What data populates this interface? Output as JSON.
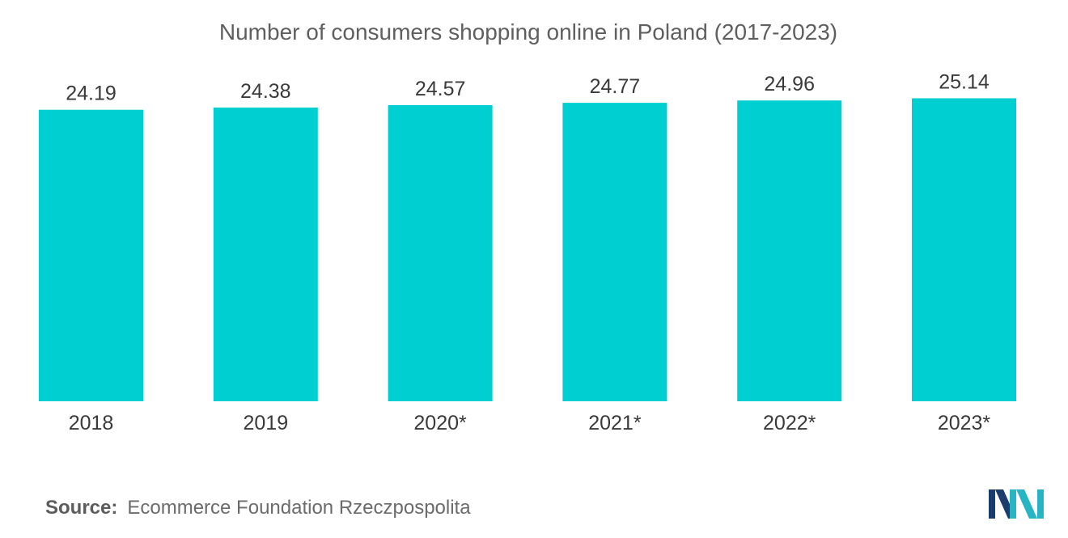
{
  "chart_data": {
    "type": "bar",
    "title": "Number of consumers shopping online in Poland (2017-2023)",
    "categories": [
      "2018",
      "2019",
      "2020*",
      "2021*",
      "2022*",
      "2023*"
    ],
    "values": [
      24.19,
      24.38,
      24.57,
      24.77,
      24.96,
      25.14
    ],
    "value_labels": [
      "24.19",
      "24.38",
      "24.57",
      "24.77",
      "24.96",
      "25.14"
    ],
    "xlabel": "",
    "ylabel": "",
    "ylim": [
      0,
      33.3
    ],
    "grid": false,
    "legend": "none",
    "bar_color": "#00cfd1"
  },
  "source": {
    "label": "Source:",
    "text": "Ecommerce Foundation Rzeczpospolita"
  },
  "logo": {
    "icon": "mordor-intelligence-logo-icon",
    "colors": [
      "#1b3d6e",
      "#27b5c4"
    ]
  }
}
